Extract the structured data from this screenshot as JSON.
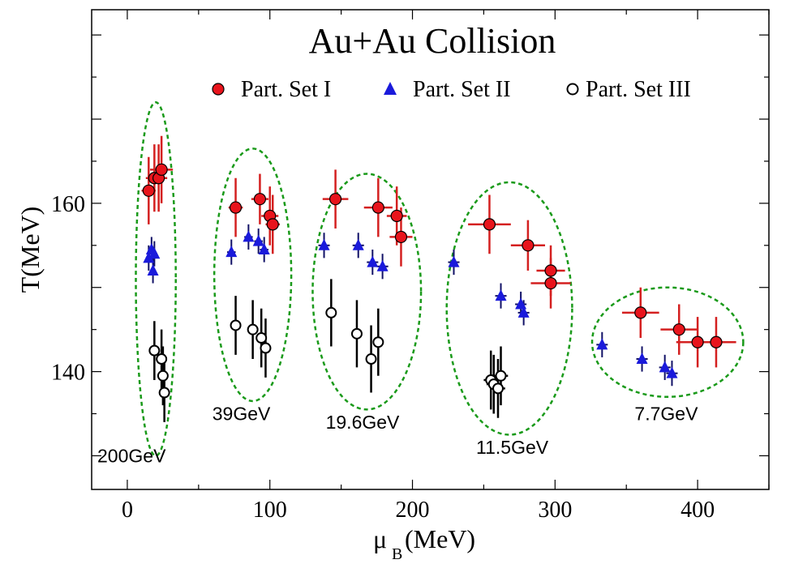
{
  "chart_data": {
    "type": "scatter",
    "title": "Au+Au Collision",
    "xlabel_main": "μ",
    "xlabel_sub": "B",
    "xlabel_unit": "(MeV)",
    "ylabel": "T(MeV)",
    "xlim": [
      -25,
      450
    ],
    "ylim": [
      126,
      183
    ],
    "x_ticks": [
      0,
      100,
      200,
      300,
      400
    ],
    "x_tick_labels": [
      "0",
      "100",
      "200",
      "300",
      "400"
    ],
    "y_ticks": [
      140,
      160
    ],
    "y_tick_labels": [
      "140",
      "160"
    ],
    "legend_position": "top",
    "series": [
      {
        "name": "Part. Set I",
        "marker": "filled-circle",
        "color": "#e8141c",
        "point_color": "#e8141c",
        "errorbar_color": "#d42020",
        "points": [
          {
            "x": 15,
            "y": 161.5,
            "xerr": 5,
            "yerr": 4
          },
          {
            "x": 19,
            "y": 163,
            "xerr": 6,
            "yerr": 4
          },
          {
            "x": 22,
            "y": 163,
            "xerr": 6,
            "yerr": 4
          },
          {
            "x": 24,
            "y": 164,
            "xerr": 8,
            "yerr": 4
          },
          {
            "x": 76,
            "y": 159.5,
            "xerr": 5,
            "yerr": 3.5
          },
          {
            "x": 93,
            "y": 160.5,
            "xerr": 6,
            "yerr": 3
          },
          {
            "x": 100,
            "y": 158.5,
            "xerr": 6,
            "yerr": 3.5
          },
          {
            "x": 102,
            "y": 157.5,
            "xerr": 5,
            "yerr": 3.5
          },
          {
            "x": 146,
            "y": 160.5,
            "xerr": 9,
            "yerr": 3.5
          },
          {
            "x": 176,
            "y": 159.5,
            "xerr": 10,
            "yerr": 3.5
          },
          {
            "x": 189,
            "y": 158.5,
            "xerr": 7,
            "yerr": 3.5
          },
          {
            "x": 192,
            "y": 156,
            "xerr": 8,
            "yerr": 3.5
          },
          {
            "x": 254,
            "y": 157.5,
            "xerr": 15,
            "yerr": 3.5
          },
          {
            "x": 281,
            "y": 155,
            "xerr": 12,
            "yerr": 3
          },
          {
            "x": 297,
            "y": 152,
            "xerr": 10,
            "yerr": 3
          },
          {
            "x": 297,
            "y": 150.5,
            "xerr": 14,
            "yerr": 3
          },
          {
            "x": 360,
            "y": 147,
            "xerr": 13,
            "yerr": 3
          },
          {
            "x": 387,
            "y": 145,
            "xerr": 13,
            "yerr": 3
          },
          {
            "x": 400,
            "y": 143.5,
            "xerr": 15,
            "yerr": 3
          },
          {
            "x": 413,
            "y": 143.5,
            "xerr": 14,
            "yerr": 3
          }
        ]
      },
      {
        "name": "Part. Set II",
        "marker": "filled-triangle",
        "color": "#1a1adb",
        "point_color": "#1a1adb",
        "errorbar_color": "#111166",
        "points": [
          {
            "x": 15,
            "y": 153.5,
            "xerr": 2,
            "yerr": 1.5
          },
          {
            "x": 17,
            "y": 154.5,
            "xerr": 2,
            "yerr": 1.5
          },
          {
            "x": 19,
            "y": 154,
            "xerr": 2,
            "yerr": 1.5
          },
          {
            "x": 18,
            "y": 152,
            "xerr": 2,
            "yerr": 1.5
          },
          {
            "x": 73,
            "y": 154.2,
            "xerr": 3,
            "yerr": 1.5
          },
          {
            "x": 85,
            "y": 156,
            "xerr": 3,
            "yerr": 1.5
          },
          {
            "x": 92,
            "y": 155.5,
            "xerr": 3,
            "yerr": 1.5
          },
          {
            "x": 96,
            "y": 154.5,
            "xerr": 3,
            "yerr": 1.5
          },
          {
            "x": 138,
            "y": 155,
            "xerr": 4,
            "yerr": 1.5
          },
          {
            "x": 162,
            "y": 155,
            "xerr": 4,
            "yerr": 1.5
          },
          {
            "x": 172,
            "y": 153,
            "xerr": 4,
            "yerr": 1.5
          },
          {
            "x": 179,
            "y": 152.5,
            "xerr": 4,
            "yerr": 1.5
          },
          {
            "x": 229,
            "y": 153,
            "xerr": 4,
            "yerr": 1.5
          },
          {
            "x": 262,
            "y": 149,
            "xerr": 4,
            "yerr": 1.5
          },
          {
            "x": 276,
            "y": 148,
            "xerr": 4,
            "yerr": 1.5
          },
          {
            "x": 278,
            "y": 147,
            "xerr": 4,
            "yerr": 1.5
          },
          {
            "x": 333,
            "y": 143.2,
            "xerr": 4,
            "yerr": 1.5
          },
          {
            "x": 361,
            "y": 141.5,
            "xerr": 4,
            "yerr": 1.5
          },
          {
            "x": 377,
            "y": 140.5,
            "xerr": 4,
            "yerr": 1.5
          },
          {
            "x": 382,
            "y": 139.8,
            "xerr": 4,
            "yerr": 1.5
          }
        ]
      },
      {
        "name": "Part. Set III",
        "marker": "open-circle",
        "color": "#000000",
        "point_color": "#000000",
        "errorbar_color": "#000000",
        "points": [
          {
            "x": 19,
            "y": 142.5,
            "xerr": 2,
            "yerr": 3.5
          },
          {
            "x": 24,
            "y": 141.5,
            "xerr": 2,
            "yerr": 3.5
          },
          {
            "x": 25,
            "y": 139.5,
            "xerr": 2,
            "yerr": 3.5
          },
          {
            "x": 26,
            "y": 137.5,
            "xerr": 2,
            "yerr": 3.5
          },
          {
            "x": 76,
            "y": 145.5,
            "xerr": 3,
            "yerr": 3.5
          },
          {
            "x": 88,
            "y": 145,
            "xerr": 3,
            "yerr": 3.5
          },
          {
            "x": 94,
            "y": 144,
            "xerr": 3,
            "yerr": 3.5
          },
          {
            "x": 97,
            "y": 142.8,
            "xerr": 3,
            "yerr": 3.5
          },
          {
            "x": 143,
            "y": 147,
            "xerr": 3,
            "yerr": 4
          },
          {
            "x": 161,
            "y": 144.5,
            "xerr": 3,
            "yerr": 4
          },
          {
            "x": 171,
            "y": 141.5,
            "xerr": 3,
            "yerr": 4
          },
          {
            "x": 176,
            "y": 143.5,
            "xerr": 3,
            "yerr": 4
          },
          {
            "x": 255,
            "y": 139,
            "xerr": 5,
            "yerr": 3.5
          },
          {
            "x": 257,
            "y": 138.5,
            "xerr": 5,
            "yerr": 3.5
          },
          {
            "x": 260,
            "y": 138,
            "xerr": 5,
            "yerr": 3.5
          },
          {
            "x": 262,
            "y": 139.5,
            "xerr": 5,
            "yerr": 3.5
          }
        ]
      }
    ],
    "annotations": [
      {
        "text": "200GeV",
        "x": 3,
        "y": 130
      },
      {
        "text": "39GeV",
        "x": 80,
        "y": 135
      },
      {
        "text": "19.6GeV",
        "x": 165,
        "y": 134
      },
      {
        "text": "11.5GeV",
        "x": 270,
        "y": 131
      },
      {
        "text": "7.7GeV",
        "x": 378,
        "y": 135
      }
    ],
    "ellipses": [
      {
        "label": "200GeV",
        "cx": 20,
        "cy": 151,
        "rx": 14,
        "ry": 21
      },
      {
        "label": "39GeV",
        "cx": 88,
        "cy": 151.5,
        "rx": 27,
        "ry": 15
      },
      {
        "label": "19.6GeV",
        "cx": 168,
        "cy": 149.5,
        "rx": 38,
        "ry": 14
      },
      {
        "label": "11.5GeV",
        "cx": 268,
        "cy": 147.5,
        "rx": 44,
        "ry": 15
      },
      {
        "label": "7.7GeV",
        "cx": 379,
        "cy": 143.5,
        "rx": 53,
        "ry": 6.5
      }
    ],
    "ellipse_color": "#1a9a1a"
  }
}
